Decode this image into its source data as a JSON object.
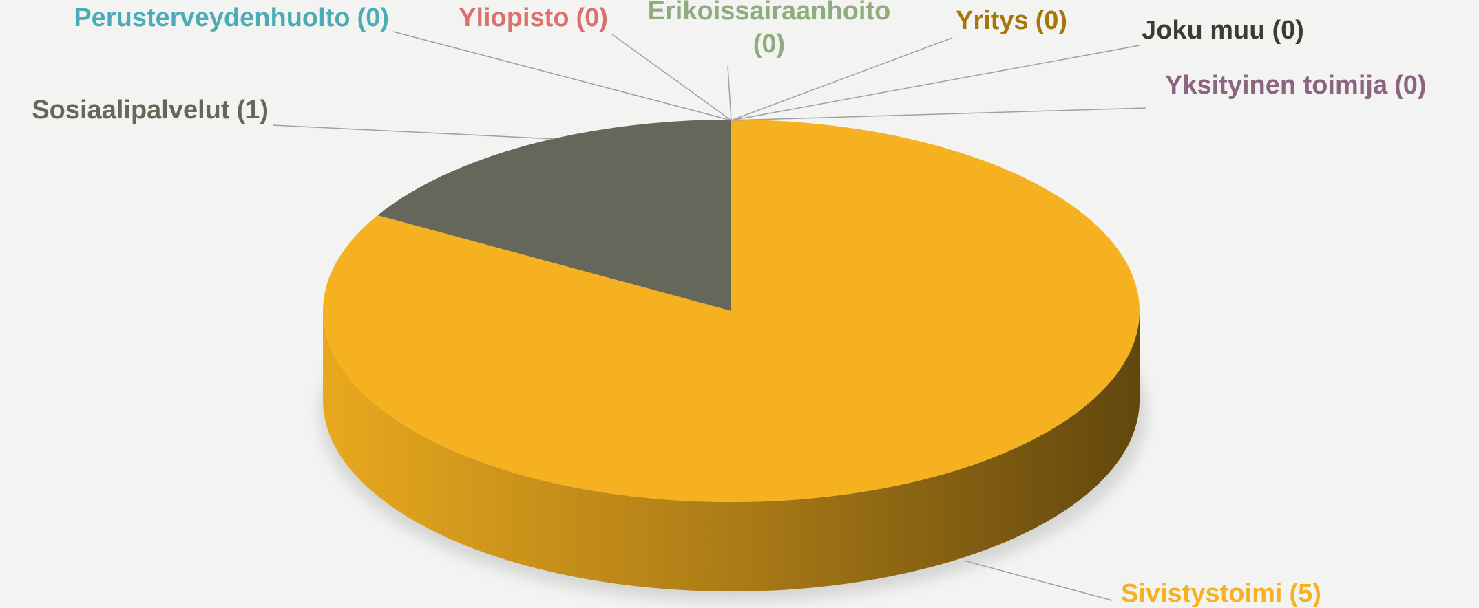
{
  "chart_data": {
    "type": "pie3d",
    "categories": [
      "Sivistystoimi",
      "Sosiaalipalvelut",
      "Perusterveydenhuolto",
      "Yliopisto",
      "Erikoissairaanhoito",
      "Yritys",
      "Joku muu",
      "Yksityinen toimija"
    ],
    "values": [
      5,
      1,
      0,
      0,
      0,
      0,
      0,
      0
    ],
    "value_labels": [
      "(5)",
      "(1)",
      "(0)",
      "(0)",
      "(0)",
      "(0)",
      "(0)",
      "(0)"
    ],
    "colors": [
      "#f5b120",
      "#646759",
      "#4bacb6",
      "#d9726e",
      "#8fac7e",
      "#a6760a",
      "#3c3c36",
      "#8a6480"
    ]
  }
}
